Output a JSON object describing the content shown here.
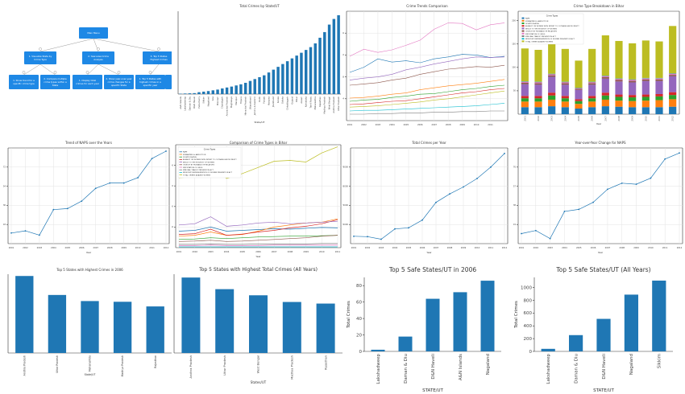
{
  "diagram": {
    "root": "Main Menu",
    "level1": [
      "1. Visualize State by Crime Type",
      "2. Year-wise Crime Analysis",
      "3. Top 5 States Highest Crimes"
    ],
    "level2": [
      "1. Show trend for a specific crime type",
      "2. Compare multiple crime types within a State",
      "1. Display total crimes for each year",
      "2. Show year-over-year crime changes for a specific State",
      "1. Top 5 States with highest crimes in a specific year"
    ]
  },
  "chart_data": [
    {
      "id": "total-by-state",
      "type": "bar",
      "title": "Total Crimes by State/UT",
      "xlabel": "State/UT",
      "ylabel": "",
      "color": "#1f77b4",
      "categories": [
        "A&N Islands",
        "Lakshadweep",
        "Daman & Diu",
        "D&N Haveli",
        "Puducherry",
        "Sikkim",
        "Nagaland",
        "Goa",
        "Mizoram",
        "Chandigarh",
        "Arunachal Pradesh",
        "Meghalaya",
        "Manipur",
        "Tripura",
        "Himachal Pradesh",
        "Uttarakhand",
        "Jammu & Kashmir",
        "Delhi",
        "Punjab",
        "Haryana",
        "Jharkhand",
        "Kerala",
        "Odisha",
        "Chhattisgarh",
        "Gujarat",
        "Bihar",
        "Assam",
        "Karnataka",
        "Tamil Nadu",
        "Maharashtra",
        "Rajasthan",
        "Madhya Pradesh",
        "West Bengal",
        "Andhra Pradesh",
        "Uttar Pradesh"
      ],
      "values": [
        0.2,
        0.3,
        0.4,
        0.5,
        1.0,
        1.3,
        1.6,
        2.0,
        2.4,
        3.0,
        3.5,
        4.0,
        4.6,
        5.2,
        6.0,
        7.0,
        8.0,
        9.0,
        10.0,
        11.5,
        13.0,
        14.5,
        16.0,
        17.5,
        19.0,
        20.5,
        22.0,
        23.5,
        25.0,
        27.0,
        30.0,
        33.0,
        37.0,
        40.0,
        42.0
      ]
    },
    {
      "id": "trends",
      "type": "line",
      "title": "Crime Trends Comparison",
      "x": [
        2001,
        2002,
        2003,
        2004,
        2005,
        2006,
        2007,
        2008,
        2009,
        2010,
        2011,
        2012
      ],
      "x_ticks": [
        "2001",
        "2002",
        "2003",
        "2004",
        "2005",
        "2006",
        "2007",
        "2008",
        "2009",
        "2010",
        "2011"
      ],
      "series": [
        {
          "color": "#e377c2",
          "values": [
            1.0,
            1.11,
            1.06,
            1.1,
            1.17,
            1.25,
            1.42,
            1.52,
            1.51,
            1.41,
            1.49,
            1.52
          ]
        },
        {
          "color": "#1f77b4",
          "values": [
            0.75,
            0.83,
            0.96,
            0.91,
            0.93,
            0.9,
            0.96,
            0.99,
            1.03,
            1.02,
            0.98,
            1.0
          ]
        },
        {
          "color": "#9467bd",
          "values": [
            0.63,
            0.66,
            0.68,
            0.72,
            0.79,
            0.83,
            0.88,
            0.92,
            0.96,
            0.99,
            0.98,
            0.99
          ]
        },
        {
          "color": "#8c564b",
          "values": [
            0.55,
            0.57,
            0.59,
            0.63,
            0.66,
            0.72,
            0.76,
            0.8,
            0.82,
            0.84,
            0.83,
            0.86
          ]
        },
        {
          "color": "#ff7f0e",
          "values": [
            0.35,
            0.36,
            0.38,
            0.41,
            0.43,
            0.48,
            0.51,
            0.54,
            0.56,
            0.58,
            0.61,
            0.64
          ]
        },
        {
          "color": "#2ca02c",
          "values": [
            0.3,
            0.32,
            0.33,
            0.36,
            0.38,
            0.41,
            0.42,
            0.45,
            0.48,
            0.5,
            0.53,
            0.55
          ]
        },
        {
          "color": "#d62728",
          "values": [
            0.25,
            0.26,
            0.28,
            0.3,
            0.31,
            0.34,
            0.37,
            0.4,
            0.43,
            0.45,
            0.48,
            0.5
          ]
        },
        {
          "color": "#bcbd22",
          "values": [
            0.21,
            0.22,
            0.23,
            0.25,
            0.27,
            0.29,
            0.32,
            0.34,
            0.37,
            0.4,
            0.43,
            0.46
          ]
        },
        {
          "color": "#17becf",
          "values": [
            0.15,
            0.16,
            0.16,
            0.17,
            0.18,
            0.19,
            0.2,
            0.21,
            0.22,
            0.23,
            0.25,
            0.27
          ]
        },
        {
          "color": "#7f7f7f",
          "values": [
            0.1,
            0.1,
            0.11,
            0.11,
            0.12,
            0.12,
            0.13,
            0.13,
            0.14,
            0.14,
            0.15,
            0.15
          ]
        }
      ],
      "ylim": [
        0,
        1.7
      ]
    },
    {
      "id": "bihar-stacked",
      "type": "bar",
      "title": "Crime Type Breakdown in Bihar",
      "xlabel": "Year",
      "legend_title": "Crime Types",
      "legend_position": "top-left",
      "categories": [
        "2001",
        "2002",
        "2003",
        "2004",
        "2005",
        "2006",
        "2007",
        "2008",
        "2009",
        "2010",
        "2011",
        "2012"
      ],
      "series": [
        {
          "name": "RAPE",
          "color": "#1f77b4",
          "values": [
            15,
            15,
            17,
            15,
            12,
            15,
            17,
            16,
            15,
            15,
            15,
            16
          ]
        },
        {
          "name": "KIDNAPPING & ABDUCTION",
          "color": "#ff7f0e",
          "values": [
            12,
            12,
            14,
            12,
            10,
            12,
            14,
            13,
            13,
            14,
            15,
            16
          ]
        },
        {
          "name": "DOWRY DEATHS",
          "color": "#2ca02c",
          "values": [
            7,
            7,
            9,
            7,
            6,
            7,
            9,
            8,
            8,
            8,
            8,
            9
          ]
        },
        {
          "name": "ASSAULT ON WOMEN WITH INTENT TO OUTRAGE HER MODESTY",
          "color": "#d62728",
          "values": [
            5,
            5,
            6,
            5,
            4,
            5,
            6,
            5,
            5,
            5,
            5,
            6
          ]
        },
        {
          "name": "INSULT TO THE MODESTY OF WOMEN",
          "color": "#9467bd",
          "values": [
            25,
            24,
            34,
            24,
            20,
            24,
            30,
            28,
            27,
            29,
            28,
            34
          ]
        },
        {
          "name": "CRUELTY BY HUSBAND OR RELATIVES",
          "color": "#8c564b",
          "values": [
            3,
            3,
            3,
            3,
            2,
            3,
            3,
            3,
            3,
            3,
            3,
            3
          ]
        },
        {
          "name": "IMPORTATION OF GIRLS",
          "color": "#e377c2",
          "values": [
            2,
            2,
            2,
            2,
            1,
            2,
            2,
            2,
            2,
            2,
            2,
            2
          ]
        },
        {
          "name": "IMMORAL TRAFFIC PREVENTION ACT",
          "color": "#7f7f7f",
          "values": [
            1,
            1,
            1,
            1,
            1,
            1,
            1,
            1,
            1,
            1,
            1,
            1
          ]
        },
        {
          "name": "INDECENT REPRESENTATION OF WOMEN PREVENTION ACT",
          "color": "#17becf",
          "values": [
            0.5,
            0.5,
            0.5,
            0.5,
            0.5,
            0.5,
            0.5,
            0.5,
            0.5,
            0.5,
            0.5,
            0.5
          ]
        },
        {
          "name": "TOTAL CRIMES AGAINST WOMEN",
          "color": "#bcbd22",
          "values": [
            70,
            68,
            94,
            70,
            58,
            70,
            86,
            80,
            77,
            80,
            78,
            101
          ]
        }
      ],
      "ylim": [
        0,
        220
      ]
    },
    {
      "id": "naps-trend",
      "type": "line",
      "title": "Trend of NAPS over the Years",
      "xlabel": "Year",
      "x": [
        2001,
        2002,
        2003,
        2004,
        2005,
        2006,
        2007,
        2008,
        2009,
        2010,
        2011,
        2012
      ],
      "x_ticks": [
        "2001",
        "2002",
        "2003",
        "2004",
        "2005",
        "2006",
        "2007",
        "2008",
        "2009",
        "2010",
        "2011",
        "2012"
      ],
      "values": [
        10,
        12,
        8,
        32,
        33,
        40,
        52,
        57,
        57,
        62,
        80,
        87
      ],
      "color": "#1f77b4",
      "ylim": [
        0,
        90
      ]
    },
    {
      "id": "bihar-compare",
      "type": "line",
      "title": "Comparison of Crime Types in Bihar",
      "xlabel": "Year",
      "legend_title": "Crime Types",
      "legend_position": "top-left",
      "x": [
        2001,
        2002,
        2003,
        2004,
        2005,
        2006,
        2007,
        2008,
        2009,
        2010,
        2011
      ],
      "x_ticks": [
        "2001",
        "2002",
        "2003",
        "2004",
        "2005",
        "2006",
        "2007",
        "2008",
        "2009",
        "2010",
        "2011"
      ],
      "series": [
        {
          "name": "RAPE",
          "color": "#1f77b4",
          "values": [
            40,
            42,
            50,
            40,
            42,
            44,
            46,
            45,
            47,
            49,
            48
          ]
        },
        {
          "name": "KIDNAPPING & ABDUCTION",
          "color": "#ff7f0e",
          "values": [
            28,
            30,
            38,
            30,
            32,
            40,
            50,
            55,
            60,
            62,
            70
          ]
        },
        {
          "name": "DOWRY DEATHS",
          "color": "#2ca02c",
          "values": [
            20,
            21,
            24,
            22,
            24,
            26,
            27,
            28,
            28,
            29,
            30
          ]
        },
        {
          "name": "ASSAULT ON WOMEN WITH INTENT TO OUTRAGE HER MODESTY",
          "color": "#d62728",
          "values": [
            32,
            34,
            45,
            30,
            33,
            38,
            42,
            48,
            52,
            58,
            68
          ]
        },
        {
          "name": "INSULT TO THE MODESTY OF WOMEN",
          "color": "#9467bd",
          "values": [
            55,
            58,
            75,
            52,
            55,
            60,
            62,
            58,
            60,
            62,
            64
          ]
        },
        {
          "name": "CRUELTY BY HUSBAND OR RELATIVES",
          "color": "#8c564b",
          "values": [
            15,
            16,
            18,
            15,
            16,
            18,
            20,
            22,
            24,
            28,
            30
          ]
        },
        {
          "name": "IMPORTATION OF GIRLS",
          "color": "#e377c2",
          "values": [
            5,
            5,
            6,
            5,
            5,
            5,
            6,
            6,
            6,
            6,
            6
          ]
        },
        {
          "name": "IMMORAL TRAFFIC PREVENTION ACT",
          "color": "#7f7f7f",
          "values": [
            8,
            8,
            9,
            8,
            8,
            9,
            9,
            9,
            9,
            10,
            10
          ]
        },
        {
          "name": "INDECENT REPRESENTATION OF WOMEN PREVENTION ACT",
          "color": "#17becf",
          "values": [
            2,
            2,
            2,
            2,
            2,
            2,
            2,
            2,
            2,
            2,
            2
          ]
        },
        {
          "name": "TOTAL CRIMES AGAINST WOMEN",
          "color": "#bcbd22",
          "values": [
            170,
            172,
            210,
            168,
            180,
            195,
            210,
            212,
            208,
            230,
            245
          ]
        }
      ],
      "ylim": [
        0,
        250
      ]
    },
    {
      "id": "total-per-year",
      "type": "line",
      "title": "Total Crimes per Year",
      "xlabel": "Year",
      "x": [
        2001,
        2002,
        2003,
        2004,
        2005,
        2006,
        2007,
        2008,
        2009,
        2010,
        2011,
        2012
      ],
      "x_ticks": [
        "2001",
        "2002",
        "2003",
        "2004",
        "2005",
        "2006",
        "2007",
        "2008",
        "2009",
        "2010",
        "2011",
        "2012"
      ],
      "values": [
        290000,
        289000,
        282000,
        310000,
        313000,
        334000,
        382000,
        405000,
        424000,
        447000,
        478000,
        515000
      ],
      "color": "#1f77b4",
      "ylim": [
        270000,
        530000
      ]
    },
    {
      "id": "naps-yoy",
      "type": "line",
      "title": "Year-over-Year Change for NAPS",
      "xlabel": "Year",
      "x": [
        2001,
        2002,
        2003,
        2004,
        2005,
        2006,
        2007,
        2008,
        2009,
        2010,
        2011,
        2012
      ],
      "x_ticks": [
        "2001",
        "2002",
        "2003",
        "2004",
        "2005",
        "2006",
        "2007",
        "2008",
        "2009",
        "2010",
        "2011",
        "2012"
      ],
      "values": [
        10,
        13,
        5,
        32,
        34,
        41,
        54,
        60,
        59,
        65,
        84,
        90
      ],
      "color": "#1f77b4",
      "ylim": [
        0,
        95
      ]
    },
    {
      "id": "top5-2006",
      "type": "bar",
      "title": "Top 5 States with Highest Crimes in 2006",
      "xlabel": "State/UT",
      "color": "#1f77b4",
      "categories": [
        "Andhra Pradesh",
        "Uttar Pradesh",
        "Maharashtra",
        "Madhya Pradesh",
        "Rajasthan"
      ],
      "values": [
        21500,
        16200,
        14500,
        14300,
        13000
      ],
      "ylim": [
        0,
        22000
      ]
    },
    {
      "id": "top5-all",
      "type": "bar",
      "title": "Top 5 States with Highest Total Crimes (All Years)",
      "xlabel": "States/UT",
      "color": "#1f77b4",
      "categories": [
        "Andhra Pradesh",
        "Uttar Pradesh",
        "West Bengal",
        "Madhya Pradesh",
        "Rajasthan"
      ],
      "values": [
        565000,
        478000,
        432000,
        382000,
        370000
      ],
      "ylim": [
        0,
        590000
      ]
    },
    {
      "id": "safe-2006",
      "type": "bar",
      "title": "Top 5 Safe States/UT in 2006",
      "xlabel": "STATE/UT",
      "ylabel": "Total Crimes",
      "color": "#1f77b4",
      "categories": [
        "Lakshadweep",
        "Daman & Diu",
        "D&N Haveli",
        "A&N Islands",
        "Nagaland"
      ],
      "values": [
        2,
        18,
        64,
        72,
        86
      ],
      "ylim": [
        0,
        90
      ],
      "yticks": [
        0,
        20,
        40,
        60,
        80
      ]
    },
    {
      "id": "safe-all",
      "type": "bar",
      "title": "Top 5 Safe States/UT (All Years)",
      "xlabel": "STATE/UT",
      "ylabel": "Total Crimes",
      "color": "#1f77b4",
      "categories": [
        "Lakshadweep",
        "Daman & Diu",
        "D&N Haveli",
        "Nagaland",
        "Sikkim"
      ],
      "values": [
        40,
        255,
        510,
        890,
        1110
      ],
      "ylim": [
        0,
        1160
      ],
      "yticks": [
        0,
        200,
        400,
        600,
        800,
        1000
      ]
    }
  ]
}
